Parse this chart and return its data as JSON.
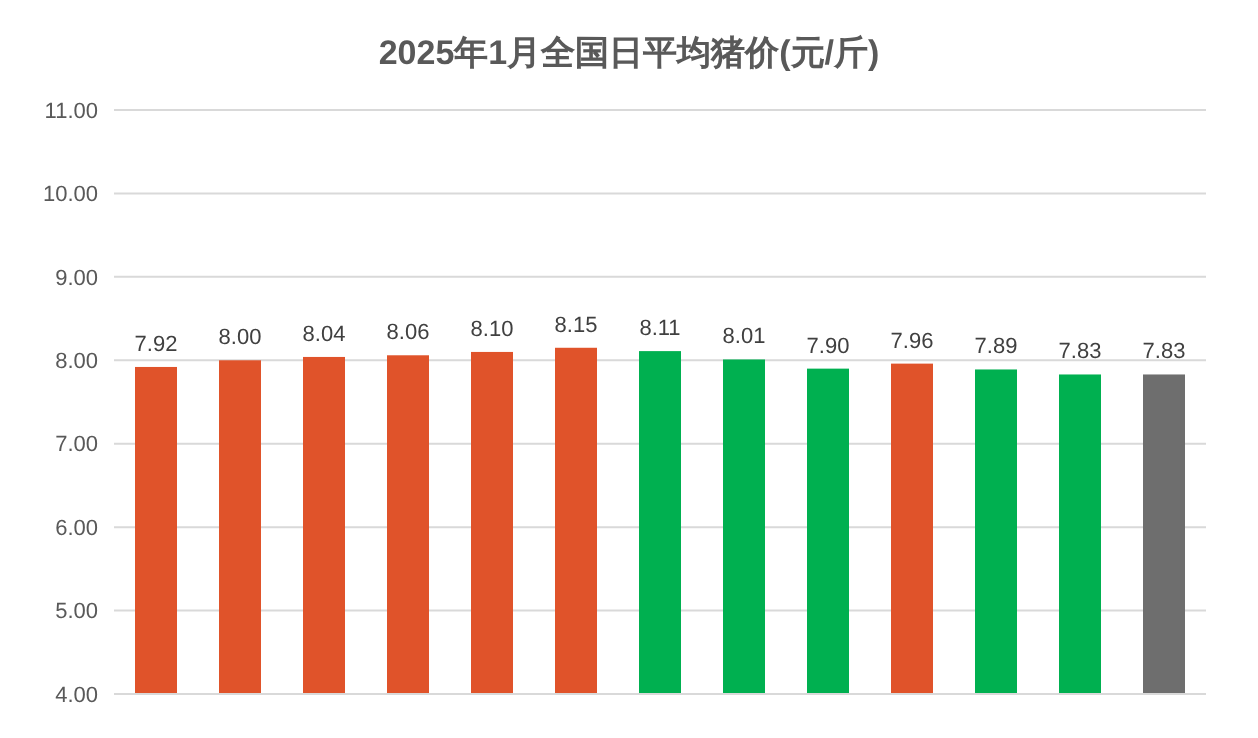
{
  "chart_data": {
    "type": "bar",
    "title": "2025年1月全国日平均猪价(元/斤)",
    "categories": [
      null,
      null,
      null,
      null,
      null,
      null,
      null,
      null,
      null,
      null,
      null,
      null,
      null
    ],
    "values": [
      7.92,
      8.0,
      8.04,
      8.06,
      8.1,
      8.15,
      8.11,
      8.01,
      7.9,
      7.96,
      7.89,
      7.83,
      7.83
    ],
    "colors": [
      "#e0532a",
      "#e0532a",
      "#e0532a",
      "#e0532a",
      "#e0532a",
      "#e0532a",
      "#00b050",
      "#00b050",
      "#00b050",
      "#e0532a",
      "#00b050",
      "#00b050",
      "#6e6e6e"
    ],
    "value_labels": [
      "7.92",
      "8.00",
      "8.04",
      "8.06",
      "8.10",
      "8.15",
      "8.11",
      "8.01",
      "7.90",
      "7.96",
      "7.89",
      "7.83",
      "7.83"
    ],
    "ylim": [
      4,
      11
    ],
    "yticks": [
      {
        "value": 4,
        "label": "4.00"
      },
      {
        "value": 5,
        "label": "5.00"
      },
      {
        "value": 6,
        "label": "6.00"
      },
      {
        "value": 7,
        "label": "7.00"
      },
      {
        "value": 8,
        "label": "8.00"
      },
      {
        "value": 9,
        "label": "9.00"
      },
      {
        "value": 10,
        "label": "10.00"
      },
      {
        "value": 11,
        "label": "11.00"
      }
    ],
    "grid": "y"
  }
}
